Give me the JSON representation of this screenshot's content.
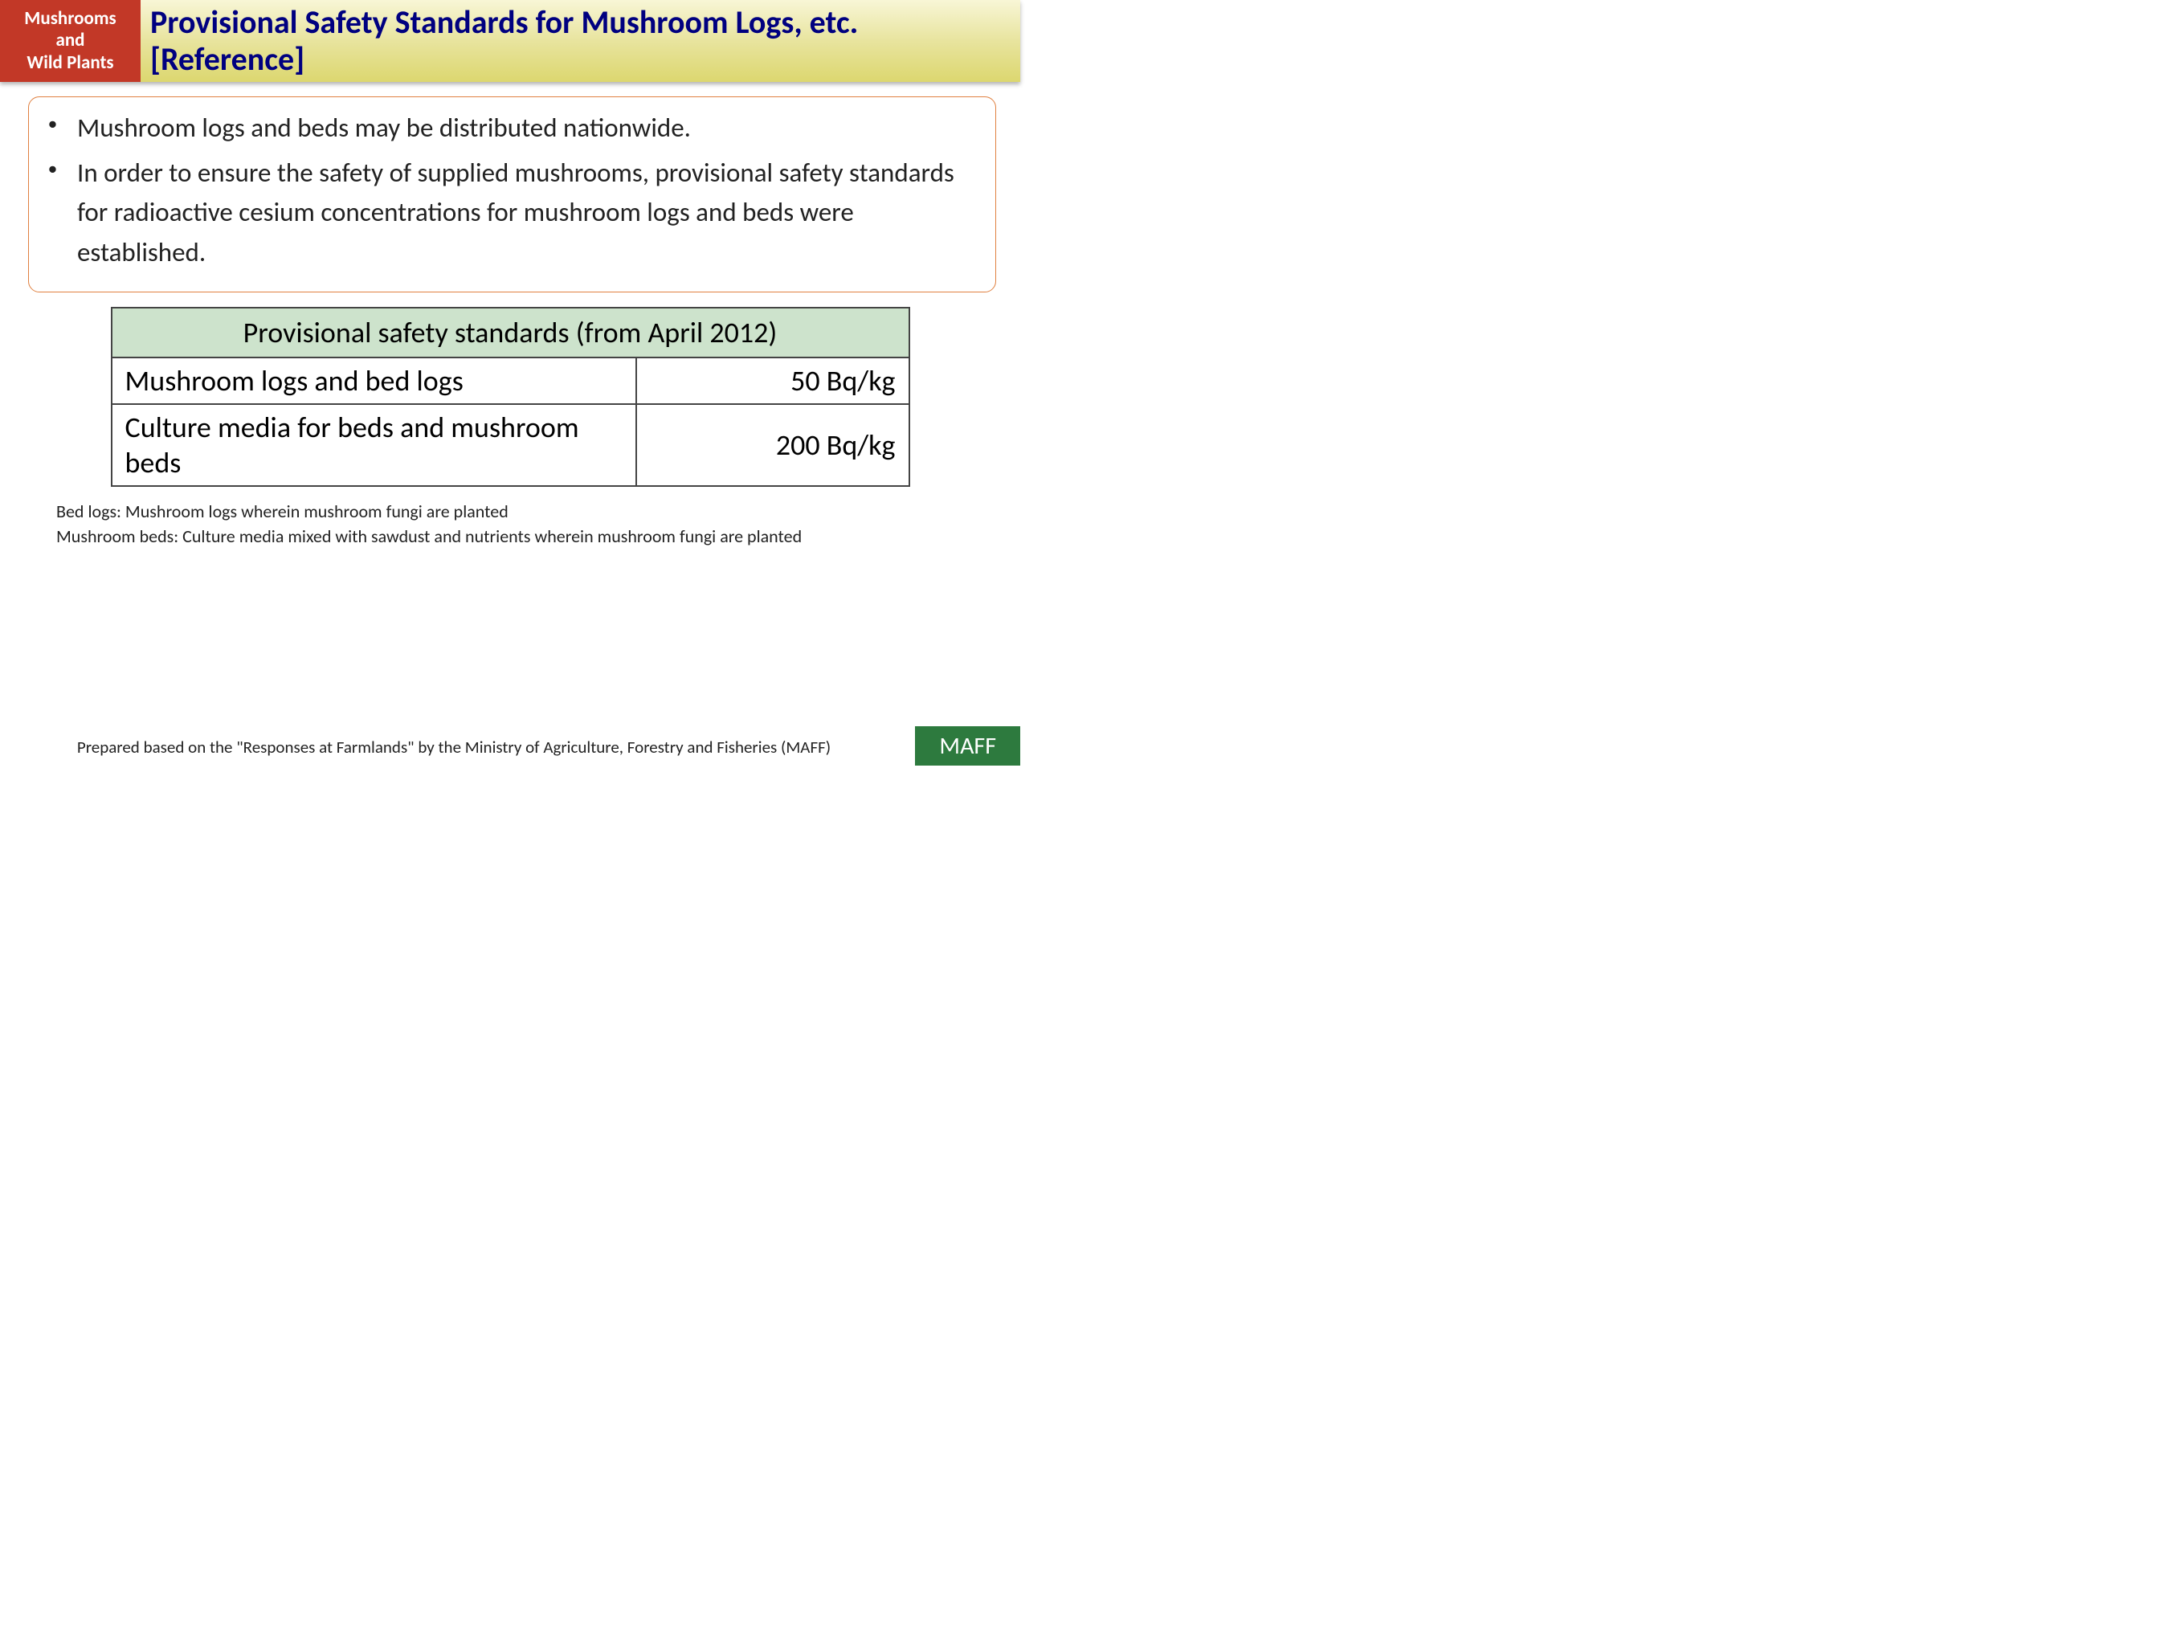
{
  "header": {
    "category_line1": "Mushrooms",
    "category_line2": "and",
    "category_line3": "Wild Plants",
    "title": "Provisional Safety Standards for Mushroom Logs, etc. [Reference]",
    "category_bg_color": "#c23827",
    "title_color": "#000080",
    "bar_gradient_top": "#f8f6d6",
    "bar_gradient_bottom": "#dcd76f"
  },
  "content_box": {
    "border_color": "#e08040",
    "bullets": [
      "Mushroom logs and beds may be distributed nationwide.",
      "In order to ensure the safety of supplied mushrooms, provisional safety standards for radioactive cesium concentrations for mushroom logs and beds were established."
    ]
  },
  "table": {
    "header_bg_color": "#cde3cc",
    "border_color": "#444444",
    "title": "Provisional safety standards (from April 2012)",
    "rows": [
      {
        "label": "Mushroom logs and bed logs",
        "value": "50 Bq/kg"
      },
      {
        "label": "Culture media for beds and mushroom beds",
        "value": "200 Bq/kg"
      }
    ]
  },
  "notes": {
    "line1": "Bed logs: Mushroom logs wherein mushroom fungi are planted",
    "line2": "Mushroom beds: Culture media mixed with sawdust and nutrients wherein mushroom fungi are planted"
  },
  "footer": {
    "source": "Prepared based on the \"Responses at Farmlands\" by the Ministry of Agriculture, Forestry and Fisheries (MAFF)",
    "badge": "MAFF",
    "badge_bg_color": "#2d7a3e"
  }
}
